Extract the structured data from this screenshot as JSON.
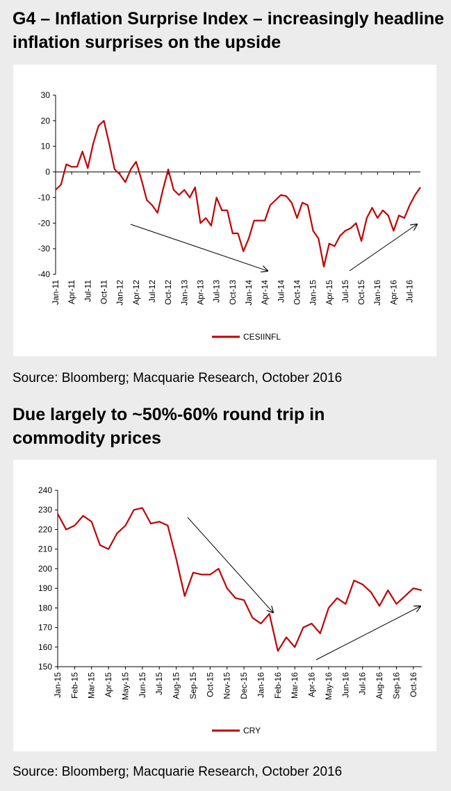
{
  "chart_data": [
    {
      "type": "line",
      "title": "G4 – Inflation Surprise Index – increasingly headline inflation surprises on the upside",
      "source": "Source: Bloomberg; Macquarie Research, October 2016",
      "categories": [
        "Jan-11",
        null,
        null,
        "Apr-11",
        null,
        null,
        "Jul-11",
        null,
        null,
        "Oct-11",
        null,
        null,
        "Jan-12",
        null,
        null,
        "Apr-12",
        null,
        null,
        "Jul-12",
        null,
        null,
        "Oct-12",
        null,
        null,
        "Jan-13",
        null,
        null,
        "Apr-13",
        null,
        null,
        "Jul-13",
        null,
        null,
        "Oct-13",
        null,
        null,
        "Jan-14",
        null,
        null,
        "Apr-14",
        null,
        null,
        "Jul-14",
        null,
        null,
        "Oct-14",
        null,
        null,
        "Jan-15",
        null,
        null,
        "Apr-15",
        null,
        null,
        "Jul-15",
        null,
        null,
        "Oct-15",
        null,
        null,
        "Jan-16",
        null,
        null,
        "Apr-16",
        null,
        null,
        "Jul-16",
        null,
        null
      ],
      "series": [
        {
          "name": "CESIINFL",
          "color": "#c00000",
          "values": [
            -7,
            -5,
            3,
            2,
            2,
            8,
            1.5,
            11,
            18,
            20,
            11,
            1,
            -1,
            -4,
            1,
            4,
            -3,
            -11,
            -13,
            -16,
            -7,
            1,
            -7,
            -9,
            -7,
            -10,
            -6,
            -20,
            -18,
            -21,
            -10,
            -15,
            -15,
            -24,
            -24,
            -31,
            -26,
            -19,
            -19,
            -19,
            -13,
            -11,
            -9,
            -9.5,
            -12,
            -18,
            -12,
            -13,
            -23,
            -26,
            -37,
            -28,
            -29,
            -25,
            -23,
            -22,
            -20,
            -27,
            -18,
            -14,
            -18,
            -15,
            -17,
            -23,
            -17,
            -18,
            -13,
            -9,
            -6
          ]
        }
      ],
      "ylim": [
        -40,
        30
      ],
      "yticks": [
        -40,
        -30,
        -20,
        -10,
        0,
        10,
        20,
        30
      ]
    },
    {
      "type": "line",
      "title": "Due largely to ~50%-60% round trip in commodity prices",
      "source": "Source: Bloomberg; Macquarie Research, October 2016",
      "categories": [
        "Jan-15",
        null,
        "Feb-15",
        null,
        "Mar-15",
        null,
        "Apr-15",
        null,
        "May-15",
        null,
        "Jun-15",
        null,
        "Jul-15",
        null,
        "Aug-15",
        null,
        "Sep-15",
        null,
        "Oct-15",
        null,
        "Nov-15",
        null,
        "Dec-15",
        null,
        "Jan-16",
        null,
        "Feb-16",
        null,
        "Mar-16",
        null,
        "Apr-16",
        null,
        "May-16",
        null,
        "Jun-16",
        null,
        "Jul-16",
        null,
        "Aug-16",
        null,
        "Sep-16",
        null,
        "Oct-16",
        null
      ],
      "series": [
        {
          "name": "CRY",
          "color": "#c00000",
          "values": [
            228,
            220,
            222,
            227,
            224,
            212,
            210,
            218,
            222,
            230,
            231,
            223,
            224,
            222,
            205,
            186,
            198,
            197,
            197,
            200,
            190,
            185,
            184,
            175,
            172,
            177,
            158,
            165,
            160,
            170,
            172,
            167,
            180,
            185,
            182,
            194,
            192,
            188,
            181,
            189,
            182,
            186,
            190,
            189
          ]
        }
      ],
      "ylim": [
        150,
        240
      ],
      "yticks": [
        150,
        160,
        170,
        180,
        190,
        200,
        210,
        220,
        230,
        240
      ]
    }
  ]
}
